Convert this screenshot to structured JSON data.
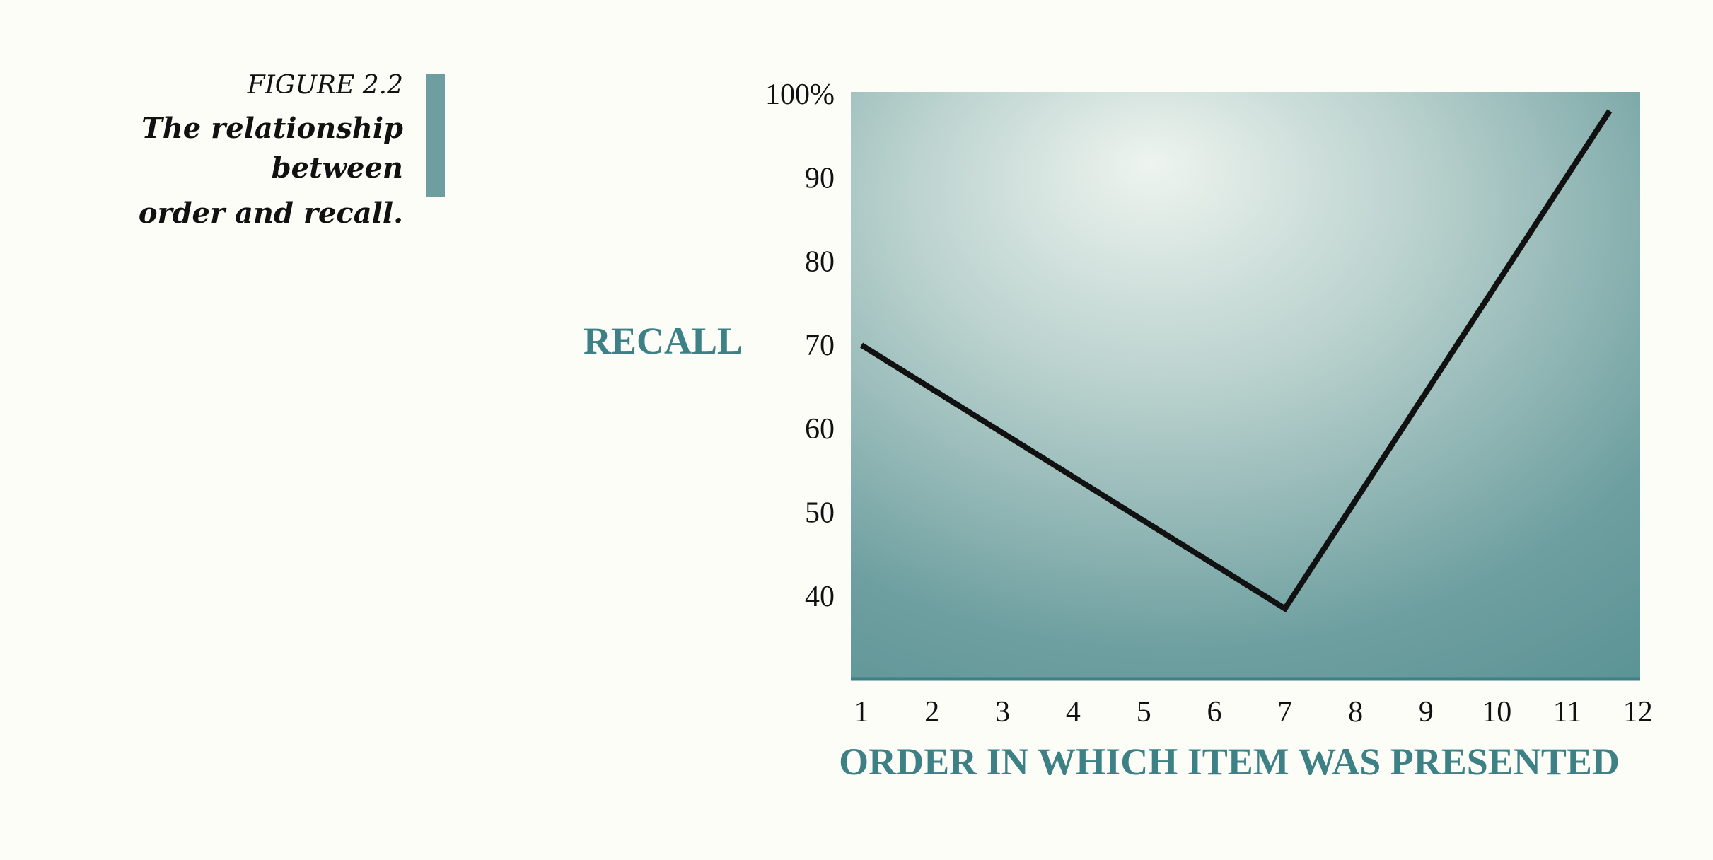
{
  "caption": {
    "figure_label": "FIGURE 2.2",
    "text_line1": "The relationship between",
    "text_line2": "order and recall."
  },
  "colors": {
    "accent": "#3d8085",
    "bar": "#6e9e9f",
    "plot_dark": "#5a9294",
    "plot_light": "#eef4ef",
    "line": "#111111"
  },
  "chart_data": {
    "type": "line",
    "title": "",
    "xlabel": "ORDER IN WHICH ITEM WAS PRESENTED",
    "ylabel": "RECALL",
    "x_ticks": [
      "1",
      "2",
      "3",
      "4",
      "5",
      "6",
      "7",
      "8",
      "9",
      "10",
      "11",
      "12"
    ],
    "y_ticks": [
      "40",
      "50",
      "60",
      "70",
      "80",
      "90",
      "100%"
    ],
    "y_tick_values": [
      40,
      50,
      60,
      70,
      80,
      90,
      100
    ],
    "xlim": [
      1,
      12
    ],
    "ylim": [
      30,
      100
    ],
    "grid": false,
    "series": [
      {
        "x": [
          1,
          7,
          11.6
        ],
        "y": [
          70,
          38.5,
          98
        ]
      }
    ]
  }
}
